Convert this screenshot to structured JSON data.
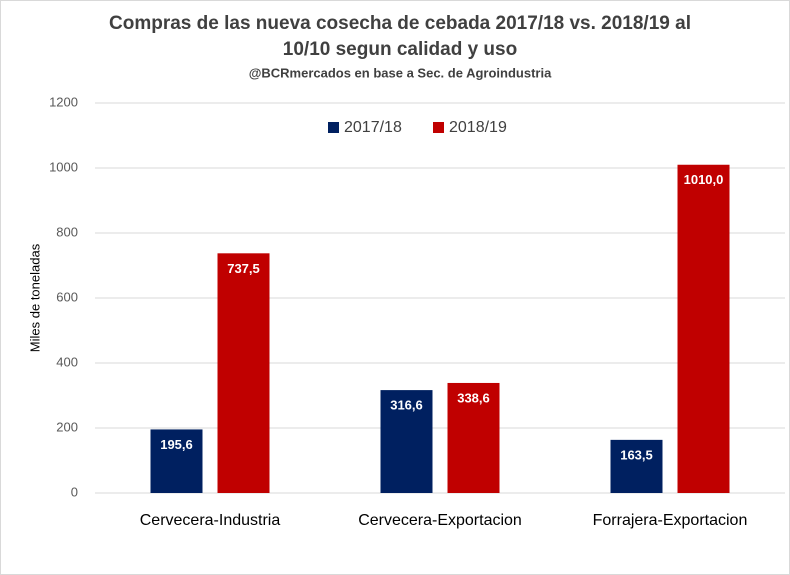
{
  "chart_data": {
    "type": "bar",
    "title": [
      "Compras de las nueva cosecha de cebada 2017/18 vs. 2018/19 al",
      "10/10 segun calidad y uso"
    ],
    "subtitle": "@BCRmercados en base a Sec. de Agroindustria",
    "y_label": "Miles de toneladas",
    "categories": [
      "Cervecera-Industria",
      "Cervecera-Exportacion",
      "Forrajera-Exportacion"
    ],
    "series": [
      {
        "name": "2017/18",
        "color": "#002060",
        "values": [
          195.6,
          316.6,
          163.5
        ],
        "value_labels": [
          "195,6",
          "316,6",
          "163,5"
        ]
      },
      {
        "name": "2018/19",
        "color": "#c00000",
        "values": [
          737.5,
          338.6,
          1010.0
        ],
        "value_labels": [
          "737,5",
          "338,6",
          "1010,0"
        ]
      }
    ],
    "ylim": [
      0,
      1200
    ],
    "yticks": [
      0,
      200,
      400,
      600,
      800,
      1000,
      1200
    ],
    "grid": true,
    "legend": "top"
  }
}
